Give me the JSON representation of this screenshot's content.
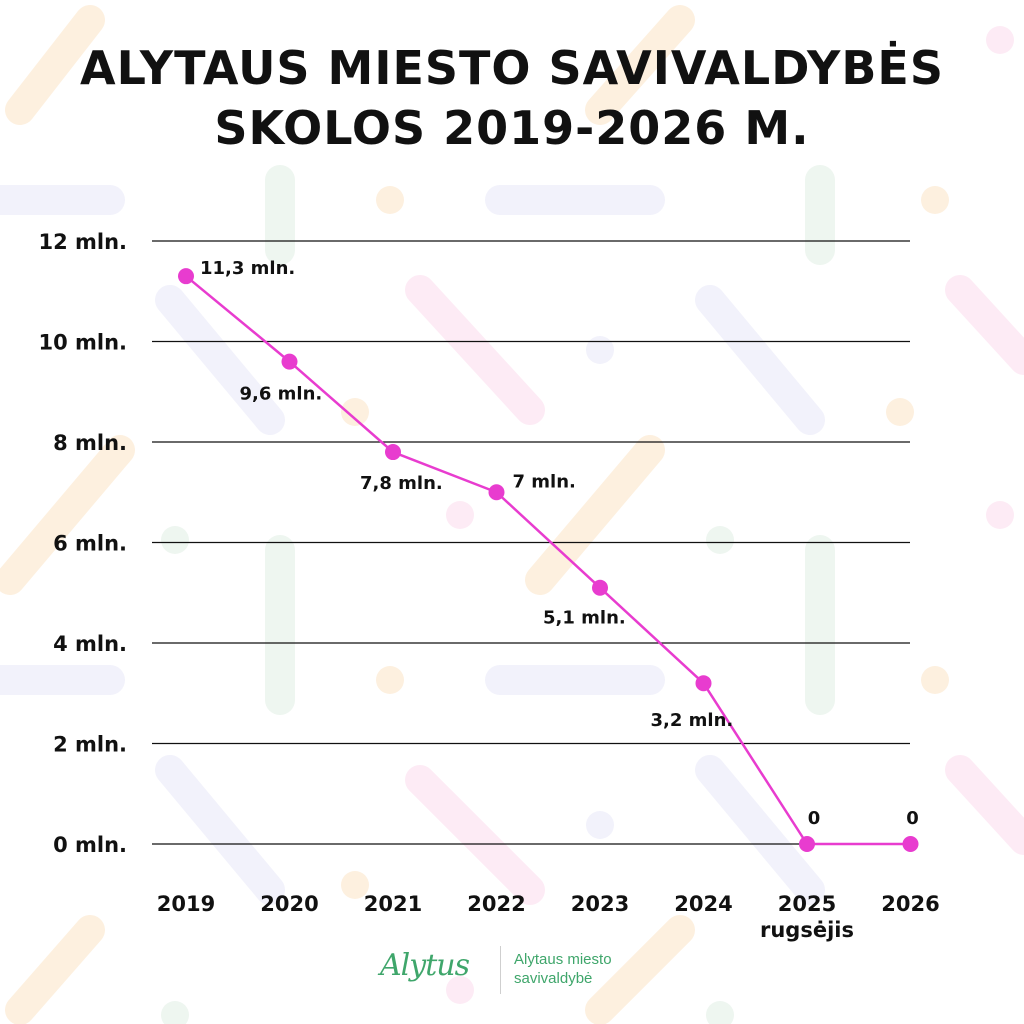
{
  "title": {
    "line1": "ALYTAUS MIESTO SAVIVALDYBĖS",
    "line2": "SKOLOS 2019-2026 M."
  },
  "chart_data": {
    "type": "line",
    "title": "ALYTAUS MIESTO SAVIVALDYBĖS SKOLOS 2019-2026 M.",
    "categories": [
      "2019",
      "2020",
      "2021",
      "2022",
      "2023",
      "2024",
      "2025",
      "2026"
    ],
    "category_sublabels": [
      "",
      "",
      "",
      "",
      "",
      "",
      "rugsėjis",
      ""
    ],
    "series": [
      {
        "values": [
          11.3,
          9.6,
          7.8,
          7.0,
          5.1,
          3.2,
          0,
          0
        ],
        "labels": [
          "11,3 mln.",
          "9,6 mln.",
          "7,8 mln.",
          "7 mln.",
          "5,1 mln.",
          "3,2 mln.",
          "0",
          "0"
        ],
        "color": "#e83ccf"
      }
    ],
    "yticks": [
      0,
      2,
      4,
      6,
      8,
      10,
      12
    ],
    "ytick_labels": [
      "0 mln.",
      "2 mln.",
      "4 mln.",
      "6 mln.",
      "8 mln.",
      "10 mln.",
      "12 mln."
    ],
    "ylim": [
      0,
      12
    ],
    "grid": true,
    "xlabel": "",
    "ylabel": ""
  },
  "footer": {
    "logo_text": "Alytus",
    "org_line1": "Alytaus miesto",
    "org_line2": "savivaldybė"
  },
  "colors": {
    "line": "#e83ccf",
    "grid": "#111111",
    "brand_green": "#3fa66b"
  }
}
